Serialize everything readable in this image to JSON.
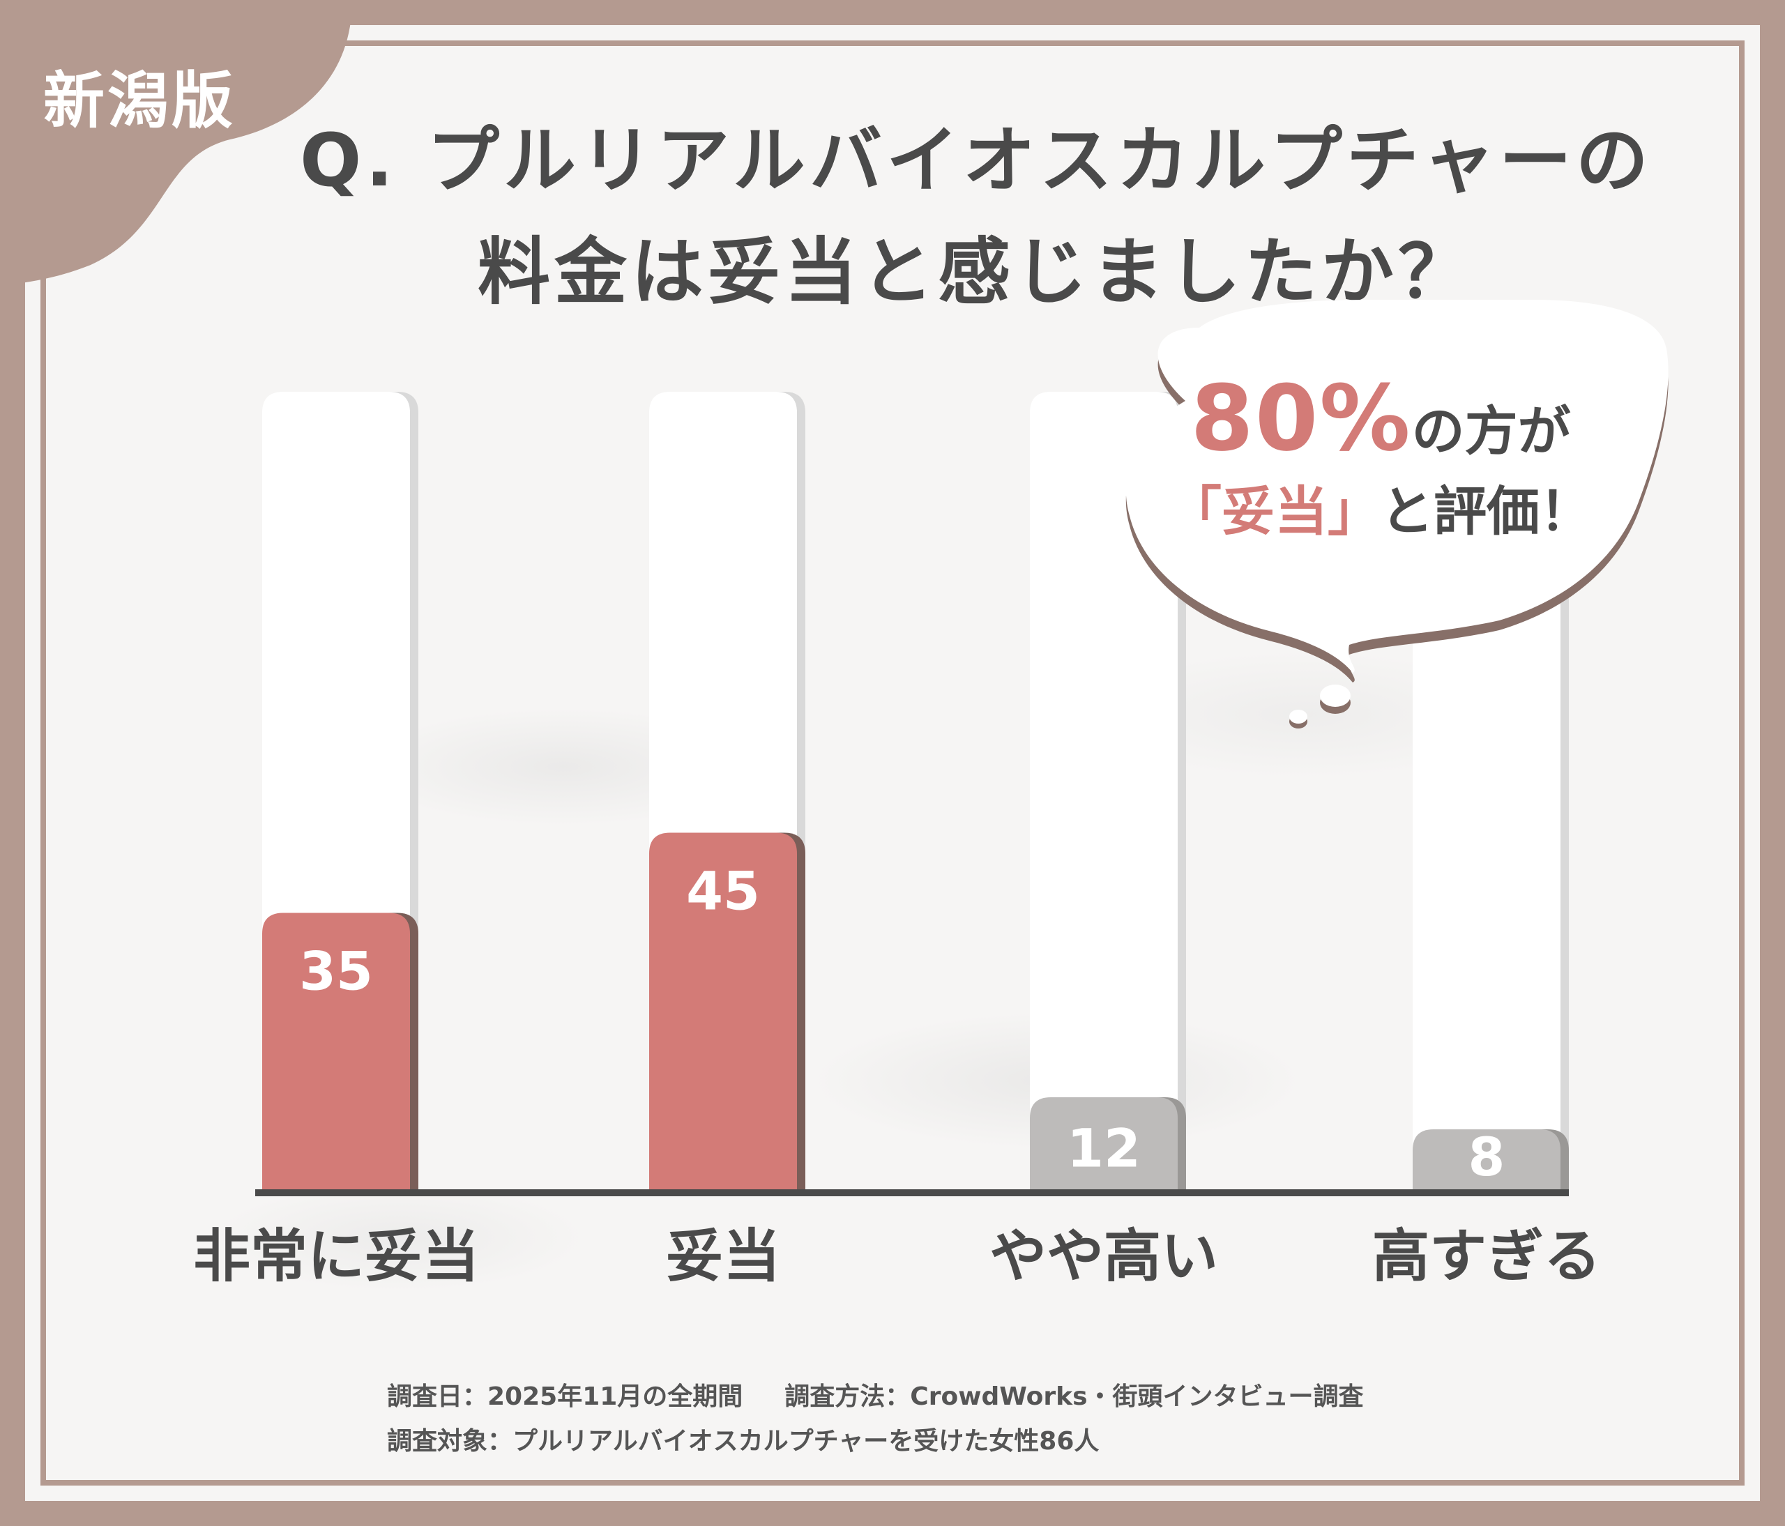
{
  "badge": {
    "region": "新潟版"
  },
  "title": {
    "line1": "Q. プルリアルバイオスカルプチャーの",
    "line2": "料金は妥当と感じましたか？"
  },
  "callout": {
    "percent": "80%",
    "line1_rest": "の方が",
    "line2_open": "「",
    "line2_highlight": "妥当",
    "line2_close": "」",
    "line2_rest": "と評価！"
  },
  "footnote": {
    "date": "調査日：2025年11月の全期間",
    "method": "調査方法：CrowdWorks・街頭インタビュー調査",
    "subject": "調査対象：プルリアルバイオスカルプチャーを受けた女性86人"
  },
  "colors": {
    "highlight": "#d37b77",
    "muted": "#bdbbba",
    "frame": "#b49a90",
    "text": "#4a4a4a"
  },
  "chart_data": {
    "type": "bar",
    "categories": [
      "非常に妥当",
      "妥当",
      "やや高い",
      "高すぎる"
    ],
    "values": [
      35,
      45,
      12,
      8
    ],
    "value_labels": [
      "35",
      "45",
      "12",
      "8"
    ],
    "highlighted": [
      true,
      true,
      false,
      false
    ],
    "ylim": [
      0,
      100
    ],
    "grid": false,
    "legend": "none"
  }
}
